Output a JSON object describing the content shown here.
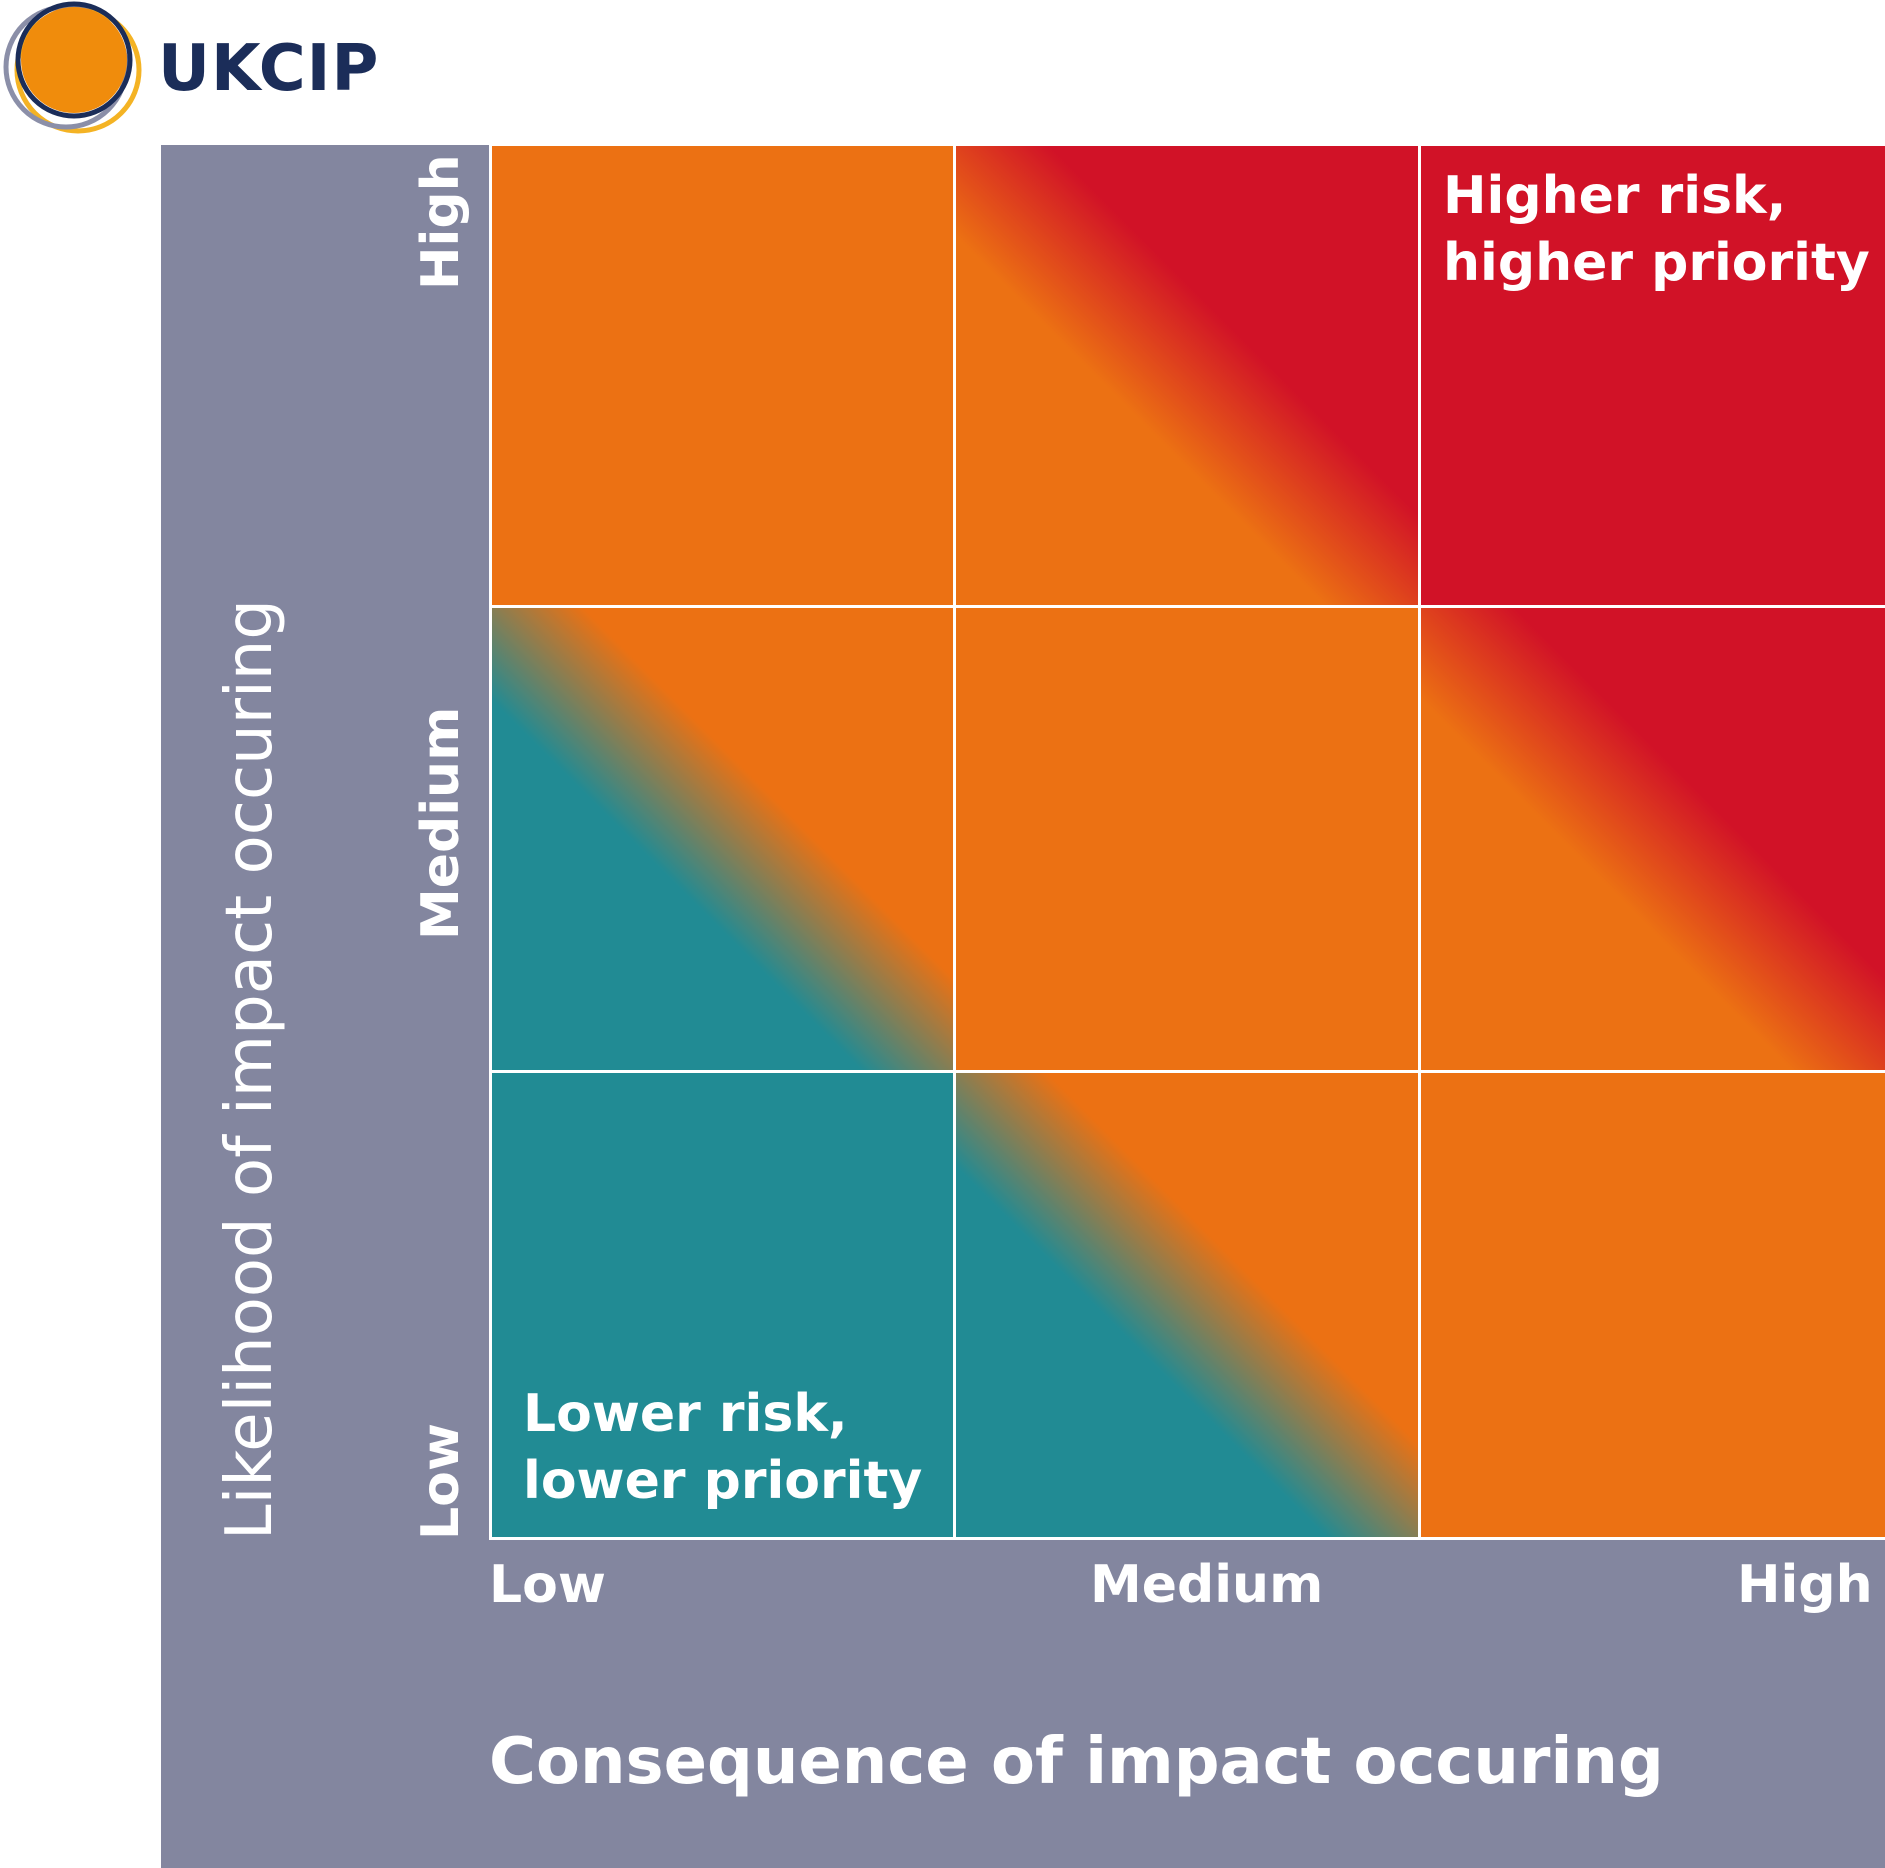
{
  "logo": {
    "text": "UKCIP"
  },
  "cells": {
    "top_right_label": "Higher risk,\nhigher priority",
    "bottom_left_label": "Lower risk,\nlower priority"
  },
  "y_axis": {
    "label": "Likelihood of impact occuring",
    "ticks": [
      "Low",
      "Medium",
      "High"
    ]
  },
  "x_axis": {
    "label": "Consequence of impact occuring",
    "ticks": [
      "Low",
      "Medium",
      "High"
    ]
  },
  "colors": {
    "panel": "#83869f",
    "orange": "#ec7113",
    "red": "#d11227",
    "teal": "#218b94",
    "logo_navy": "#1b2d59",
    "logo_orange": "#f08c0c",
    "logo_yellow": "#f4b324"
  }
}
